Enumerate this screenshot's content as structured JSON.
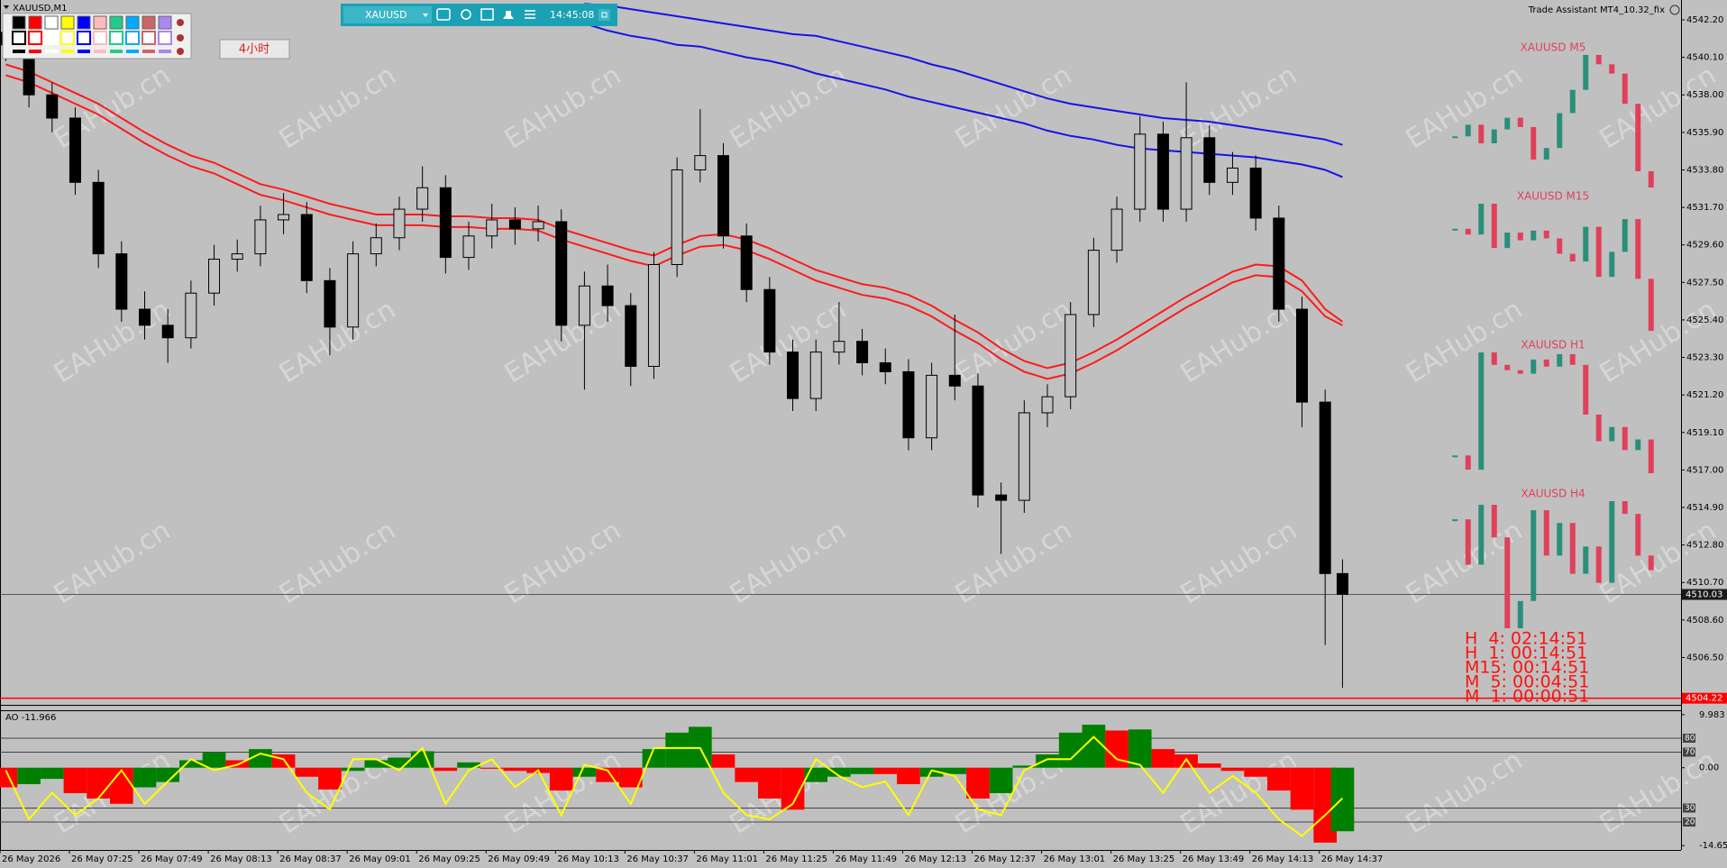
{
  "chart_data": {
    "type": "candlestick",
    "symbol_label": "XAUUSD,M1",
    "watermark": "EAHub.cn",
    "xlim": [
      421,
      1002
    ],
    "ylim": [
      4503.85,
      4543.31
    ],
    "xticks": [
      {
        "value": 421,
        "label": "26 May 2026"
      },
      {
        "value": 445,
        "label": "26 May 07:25"
      },
      {
        "value": 469,
        "label": "26 May 07:49"
      },
      {
        "value": 493,
        "label": "26 May 08:13"
      },
      {
        "value": 517,
        "label": "26 May 08:37"
      },
      {
        "value": 541,
        "label": "26 May 09:01"
      },
      {
        "value": 565,
        "label": "26 May 09:25"
      },
      {
        "value": 589,
        "label": "26 May 09:49"
      },
      {
        "value": 613,
        "label": "26 May 10:13"
      },
      {
        "value": 637,
        "label": "26 May 10:37"
      },
      {
        "value": 661,
        "label": "26 May 11:01"
      },
      {
        "value": 685,
        "label": "26 May 11:25"
      },
      {
        "value": 709,
        "label": "26 May 11:49"
      },
      {
        "value": 733,
        "label": "26 May 12:13"
      },
      {
        "value": 757,
        "label": "26 May 12:37"
      },
      {
        "value": 781,
        "label": "26 May 13:01"
      },
      {
        "value": 805,
        "label": "26 May 13:25"
      },
      {
        "value": 829,
        "label": "26 May 13:49"
      },
      {
        "value": 853,
        "label": "26 May 14:13"
      },
      {
        "value": 877,
        "label": "26 May 14:37"
      }
    ],
    "yticks": [
      {
        "value": 4542.2,
        "label": "4542.20"
      },
      {
        "value": 4540.1,
        "label": "4540.10"
      },
      {
        "value": 4538,
        "label": "4538.00"
      },
      {
        "value": 4535.9,
        "label": "4535.90"
      },
      {
        "value": 4533.8,
        "label": "4533.80"
      },
      {
        "value": 4531.7,
        "label": "4531.70"
      },
      {
        "value": 4529.6,
        "label": "4529.60"
      },
      {
        "value": 4527.5,
        "label": "4527.50"
      },
      {
        "value": 4525.4,
        "label": "4525.40"
      },
      {
        "value": 4523.3,
        "label": "4523.30"
      },
      {
        "value": 4521.2,
        "label": "4521.20"
      },
      {
        "value": 4519.1,
        "label": "4519.10"
      },
      {
        "value": 4517,
        "label": "4517.00"
      },
      {
        "value": 4514.9,
        "label": "4514.90"
      },
      {
        "value": 4512.8,
        "label": "4512.80"
      },
      {
        "value": 4510.7,
        "label": "4510.70"
      },
      {
        "value": 4508.6,
        "label": "4508.60"
      },
      {
        "value": 4506.5,
        "label": "4506.50"
      }
    ],
    "candle_color": "#000000",
    "candles": {
      "x": [
        423,
        431,
        439,
        447,
        455,
        463,
        471,
        479,
        487,
        495,
        503,
        511,
        519,
        527,
        535,
        543,
        551,
        559,
        567,
        575,
        583,
        591,
        599,
        607,
        615,
        623,
        631,
        639,
        647,
        655,
        663,
        671,
        679,
        687,
        695,
        703,
        711,
        719,
        727,
        735,
        743,
        751,
        759,
        767,
        775,
        783,
        791,
        799,
        807,
        815,
        823,
        831,
        839,
        847,
        855,
        863,
        871,
        879,
        885
      ],
      "open": [
        4541.5,
        4540.8,
        4538.0,
        4536.7,
        4533.1,
        4529.1,
        4526.0,
        4525.1,
        4524.4,
        4526.9,
        4528.8,
        4529.1,
        4531.0,
        4531.3,
        4527.6,
        4525.0,
        4529.1,
        4530.0,
        4531.6,
        4532.8,
        4528.9,
        4530.1,
        4531.0,
        4530.5,
        4530.9,
        4525.1,
        4527.3,
        4526.2,
        4522.8,
        4528.5,
        4533.8,
        4534.6,
        4530.1,
        4527.1,
        4523.6,
        4521.0,
        4523.6,
        4524.2,
        4523.0,
        4522.5,
        4518.8,
        4522.3,
        4521.7,
        4515.6,
        4515.3,
        4520.2,
        4521.1,
        4525.7,
        4529.3,
        4531.6,
        4535.8,
        4531.6,
        4535.6,
        4533.1,
        4533.9,
        4531.1,
        4526.0,
        4520.8,
        4511.2
      ],
      "high": [
        4542.3,
        4541.4,
        4538.7,
        4537.3,
        4533.8,
        4529.8,
        4527.0,
        4526.0,
        4527.6,
        4529.6,
        4529.9,
        4531.8,
        4532.5,
        4532.0,
        4528.3,
        4529.8,
        4530.8,
        4532.3,
        4534.0,
        4533.5,
        4530.9,
        4531.9,
        4531.7,
        4531.8,
        4531.6,
        4528.1,
        4528.5,
        4526.9,
        4529.2,
        4534.5,
        4537.2,
        4535.3,
        4530.8,
        4527.8,
        4524.3,
        4524.3,
        4526.4,
        4524.9,
        4523.8,
        4523.2,
        4523.0,
        4525.7,
        4522.4,
        4516.3,
        4520.9,
        4521.8,
        4526.4,
        4530.0,
        4532.3,
        4536.8,
        4536.5,
        4538.7,
        4536.3,
        4534.8,
        4534.6,
        4531.8,
        4526.7,
        4521.5,
        4512.0
      ],
      "low": [
        4539.9,
        4537.3,
        4535.9,
        4532.4,
        4528.3,
        4525.3,
        4524.3,
        4523.0,
        4523.8,
        4526.2,
        4528.1,
        4528.4,
        4530.2,
        4526.9,
        4523.4,
        4524.3,
        4528.4,
        4529.3,
        4530.9,
        4528.0,
        4528.2,
        4529.4,
        4529.6,
        4529.8,
        4524.2,
        4521.5,
        4525.3,
        4521.7,
        4522.1,
        4527.8,
        4533.1,
        4529.4,
        4526.4,
        4522.9,
        4520.3,
        4520.3,
        4522.9,
        4522.3,
        4521.8,
        4518.1,
        4518.1,
        4520.9,
        4514.9,
        4512.3,
        4514.6,
        4519.4,
        4520.4,
        4525.0,
        4528.6,
        4530.9,
        4530.9,
        4530.9,
        4532.4,
        4532.4,
        4530.4,
        4525.3,
        4519.4,
        4507.2,
        4504.8
      ],
      "close": [
        4540.8,
        4538.0,
        4536.7,
        4533.1,
        4529.1,
        4526.0,
        4525.1,
        4524.4,
        4526.9,
        4528.8,
        4529.1,
        4531.0,
        4531.3,
        4527.6,
        4525.0,
        4529.1,
        4530.0,
        4531.6,
        4532.8,
        4528.9,
        4530.1,
        4531.0,
        4530.5,
        4530.9,
        4525.1,
        4527.3,
        4526.2,
        4522.8,
        4528.5,
        4533.8,
        4534.6,
        4530.1,
        4527.1,
        4523.6,
        4521.0,
        4523.6,
        4524.2,
        4523.0,
        4522.5,
        4518.8,
        4522.3,
        4521.7,
        4515.6,
        4515.3,
        4520.2,
        4521.1,
        4525.7,
        4529.3,
        4531.6,
        4535.8,
        4531.6,
        4535.6,
        4533.1,
        4533.9,
        4531.1,
        4526.0,
        4520.8,
        4511.2,
        4510.03
      ]
    },
    "lines": [
      {
        "color": "#ff1a1a",
        "values": [
          4539.7,
          4539.3,
          4538.7,
          4538.1,
          4537.5,
          4536.7,
          4535.9,
          4535.2,
          4534.6,
          4534.2,
          4533.6,
          4533.0,
          4532.7,
          4532.3,
          4531.9,
          4531.6,
          4531.3,
          4531.3,
          4531.3,
          4531.2,
          4531.2,
          4531.1,
          4531.1,
          4531.0,
          4530.5,
          4530.1,
          4529.7,
          4529.3,
          4529.0,
          4529.6,
          4530.1,
          4530.2,
          4529.9,
          4529.4,
          4528.8,
          4528.2,
          4527.8,
          4527.4,
          4527.2,
          4526.8,
          4526.2,
          4525.4,
          4524.7,
          4523.8,
          4523.1,
          4522.7,
          4523.0,
          4523.6,
          4524.3,
          4525.1,
          4525.9,
          4526.7,
          4527.4,
          4528.1,
          4528.5,
          4528.4,
          4527.6,
          4526.0,
          4525.3
        ]
      },
      {
        "color": "#ff1a1a",
        "values": [
          4539.1,
          4538.7,
          4538.1,
          4537.5,
          4536.9,
          4536.1,
          4535.3,
          4534.6,
          4534.0,
          4533.6,
          4533.0,
          4532.4,
          4532.1,
          4531.7,
          4531.3,
          4531.0,
          4530.7,
          4530.7,
          4530.7,
          4530.6,
          4530.6,
          4530.5,
          4530.5,
          4530.4,
          4529.9,
          4529.5,
          4529.1,
          4528.7,
          4528.4,
          4529.0,
          4529.5,
          4529.6,
          4529.3,
          4528.8,
          4528.2,
          4527.6,
          4527.2,
          4526.8,
          4526.6,
          4526.2,
          4525.6,
          4524.8,
          4524.1,
          4523.2,
          4522.5,
          4522.1,
          4522.4,
          4523.0,
          4523.7,
          4524.5,
          4525.3,
          4526.1,
          4526.8,
          4527.5,
          4527.9,
          4527.8,
          4527.0,
          4525.6,
          4525.1
        ]
      },
      {
        "color": "#1414e6",
        "values": [
          null,
          null,
          null,
          null,
          null,
          null,
          null,
          null,
          null,
          null,
          null,
          null,
          null,
          null,
          null,
          null,
          null,
          null,
          null,
          null,
          null,
          null,
          null,
          null,
          null,
          4543.1,
          4543.0,
          4542.8,
          4542.6,
          4542.4,
          4542.2,
          4542.0,
          4541.8,
          4541.6,
          4541.4,
          4541.3,
          4541.0,
          4540.7,
          4540.4,
          4540.1,
          4539.7,
          4539.4,
          4539.0,
          4538.6,
          4538.2,
          4537.8,
          4537.5,
          4537.3,
          4537.1,
          4536.9,
          4536.7,
          4536.6,
          4536.5,
          4536.3,
          4536.1,
          4535.9,
          4535.7,
          4535.5,
          4535.2
        ]
      },
      {
        "color": "#1414e6",
        "values": [
          null,
          null,
          null,
          null,
          null,
          null,
          null,
          null,
          null,
          null,
          null,
          null,
          null,
          null,
          null,
          null,
          null,
          null,
          null,
          null,
          null,
          null,
          4543.0,
          4542.7,
          4542.4,
          4542.0,
          4541.6,
          4541.3,
          4541.1,
          4540.8,
          4540.7,
          4540.4,
          4540.1,
          4539.9,
          4539.6,
          4539.2,
          4538.9,
          4538.6,
          4538.3,
          4537.9,
          4537.6,
          4537.3,
          4537.0,
          4536.7,
          4536.4,
          4536.0,
          4535.7,
          4535.5,
          4535.2,
          4535.0,
          4534.9,
          4534.8,
          4534.7,
          4534.6,
          4534.5,
          4534.3,
          4534.1,
          4533.8,
          4533.4
        ]
      }
    ],
    "price_lines": [
      {
        "value": 4510.03,
        "label": "4510.03",
        "color": "#1a1a1a"
      },
      {
        "value": 4504.22,
        "label": "4504.22",
        "color": "#ff0000"
      }
    ],
    "indicator": {
      "label": "AO -11.966",
      "ylim": [
        -15.49,
        10.81
      ],
      "yticks": [
        9.983,
        {
          "value": 0,
          "label": "0.00"
        },
        -14.659
      ],
      "y2lim": [
        0,
        100
      ],
      "y2ticks": [
        80,
        70,
        30,
        20
      ],
      "up_color": "#008000",
      "down_color": "#ff0000",
      "line_color": "#ffff00",
      "ao": {
        "values": [
          -3.7,
          -3.1,
          -2.1,
          -4.8,
          -5.8,
          -6.8,
          -3.7,
          -2.7,
          1.4,
          2.9,
          1.4,
          3.5,
          2.5,
          -1.7,
          -4.1,
          -0.6,
          1.4,
          1.9,
          3.1,
          -0.6,
          1.0,
          -0.2,
          -0.6,
          -1.0,
          -4.3,
          -1.7,
          -2.7,
          -3.7,
          3.5,
          6.6,
          7.7,
          2.5,
          -2.7,
          -5.8,
          -7.9,
          -2.7,
          -1.7,
          -1.2,
          -1.2,
          -3.1,
          -1.7,
          -1.2,
          -5.8,
          -4.8,
          0.4,
          2.5,
          6.6,
          8.1,
          7.0,
          7.2,
          3.5,
          2.5,
          0.8,
          -0.6,
          -1.7,
          -4.3,
          -7.9,
          -14.1,
          -11.966
        ]
      },
      "line": {
        "axis": "y2",
        "values": [
          57,
          22,
          41,
          25,
          37,
          57,
          33,
          49,
          65,
          57,
          61,
          69,
          65,
          41,
          29,
          65,
          65,
          57,
          73,
          33,
          57,
          65,
          45,
          57,
          25,
          61,
          57,
          33,
          73,
          73,
          73,
          41,
          25,
          22,
          33,
          65,
          53,
          45,
          49,
          25,
          57,
          53,
          29,
          25,
          57,
          65,
          65,
          81,
          65,
          61,
          41,
          65,
          41,
          53,
          41,
          22,
          10,
          25,
          37
        ]
      }
    },
    "mini_charts": [
      {
        "title": "XAUUSD M5",
        "values": [
          4537.5,
          4538.0,
          4537.2,
          4537.8,
          4538.3,
          4537.9,
          4536.5,
          4537.0,
          4538.5,
          4539.5,
          4541.0,
          4540.6,
          4540.2,
          4538.9,
          4536.0,
          4535.3
        ]
      },
      {
        "title": "XAUUSD M15",
        "values": [
          4531.5,
          4531.2,
          4532.8,
          4530.5,
          4531.3,
          4530.9,
          4531.4,
          4531.0,
          4530.2,
          4529.8,
          4531.6,
          4529.0,
          4530.3,
          4532.0,
          4528.9,
          4526.2
        ]
      },
      {
        "title": "XAUUSD H1",
        "values": [
          4519.2,
          4518.4,
          4525.0,
          4524.3,
          4524.0,
          4523.8,
          4524.6,
          4524.2,
          4524.9,
          4524.3,
          4521.5,
          4520.0,
          4520.8,
          4519.5,
          4520.1,
          4518.2
        ]
      },
      {
        "title": "XAUUSD H4",
        "values": [
          4514.0,
          4511.5,
          4514.8,
          4513.0,
          4508.0,
          4509.5,
          4514.5,
          4512.0,
          4513.8,
          4511.0,
          4512.5,
          4510.5,
          4515.0,
          4514.3,
          4512.0,
          4511.2
        ]
      }
    ],
    "mini_up_color": "#2a8f7a",
    "mini_down_color": "#e0405a",
    "countdown": [
      "H  4: 02:14:51",
      "H  1: 00:14:51",
      "M15: 00:14:51",
      "M  5: 00:04:51",
      "M  1: 00:00:51"
    ]
  },
  "toolbar": {
    "symbol": "XAUUSD",
    "time": "14:45:08",
    "button": "4小时",
    "assistant": "Trade Assistant MT4_10.32_fix"
  }
}
